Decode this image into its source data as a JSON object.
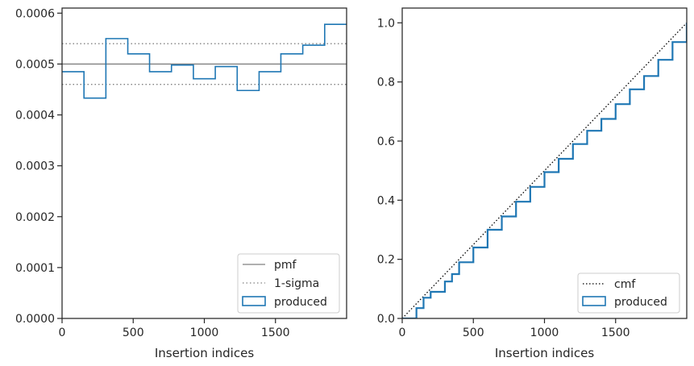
{
  "chart_data": [
    {
      "type": "line",
      "xlabel": "Insertion indices",
      "ylabel": "",
      "xlim": [
        0,
        2000
      ],
      "ylim": [
        0,
        0.00061
      ],
      "x_ticks": [
        0,
        500,
        1000,
        1500
      ],
      "x_tick_labels": [
        "0",
        "500",
        "1000",
        "1500"
      ],
      "y_ticks": [
        0,
        0.0001,
        0.0002,
        0.0003,
        0.0004,
        0.0005,
        0.0006
      ],
      "y_tick_labels": [
        "0.0000",
        "0.0001",
        "0.0002",
        "0.0003",
        "0.0004",
        "0.0005",
        "0.0006"
      ],
      "grid": false,
      "legend_position": "bottom-right",
      "pmf": {
        "name": "pmf",
        "value": 0.0005,
        "color": "#808080"
      },
      "sigma": {
        "name": "1-sigma",
        "values": [
          0.00046,
          0.00054
        ],
        "color": "#808080"
      },
      "series": [
        {
          "name": "produced",
          "color": "#1f77b4",
          "style": "step",
          "bin_edges": [
            0,
            154,
            308,
            462,
            615,
            769,
            923,
            1077,
            1231,
            1385,
            1538,
            1692,
            1846,
            2000
          ],
          "values": [
            0.000485,
            0.000433,
            0.00055,
            0.00052,
            0.000485,
            0.000498,
            0.000471,
            0.000495,
            0.000448,
            0.000485,
            0.00052,
            0.000537,
            0.000578
          ]
        }
      ]
    },
    {
      "type": "line",
      "xlabel": "Insertion indices",
      "ylabel": "",
      "xlim": [
        0,
        2000
      ],
      "ylim": [
        0,
        1.05
      ],
      "x_ticks": [
        0,
        500,
        1000,
        1500
      ],
      "x_tick_labels": [
        "0",
        "500",
        "1000",
        "1500"
      ],
      "y_ticks": [
        0,
        0.2,
        0.4,
        0.6,
        0.8,
        1.0
      ],
      "y_tick_labels": [
        "0.0",
        "0.2",
        "0.4",
        "0.6",
        "0.8",
        "1.0"
      ],
      "grid": false,
      "legend_position": "bottom-right",
      "series": [
        {
          "name": "cmf",
          "color": "#000000",
          "style": "dotted",
          "x": [
            0,
            2000
          ],
          "y": [
            0,
            1.0
          ]
        },
        {
          "name": "produced",
          "color": "#1f77b4",
          "style": "step",
          "x": [
            0,
            100,
            150,
            200,
            300,
            350,
            400,
            500,
            600,
            700,
            800,
            900,
            1000,
            1100,
            1200,
            1300,
            1400,
            1500,
            1600,
            1700,
            1800,
            1900,
            2000
          ],
          "y": [
            0,
            0.035,
            0.07,
            0.09,
            0.125,
            0.15,
            0.19,
            0.24,
            0.3,
            0.345,
            0.395,
            0.445,
            0.495,
            0.54,
            0.59,
            0.635,
            0.675,
            0.725,
            0.775,
            0.82,
            0.875,
            0.935,
            1.0
          ]
        }
      ]
    }
  ]
}
